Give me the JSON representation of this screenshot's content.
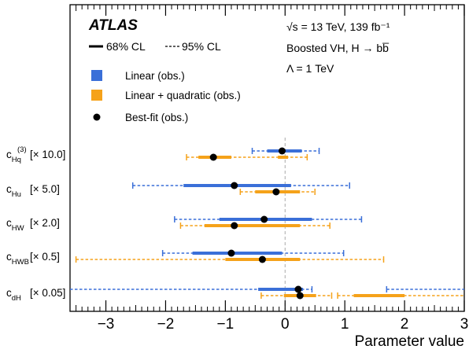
{
  "chart_data": {
    "type": "interval",
    "title": "",
    "xlabel": "Parameter value",
    "xlim": [
      -3.6,
      3.0
    ],
    "x_ticks": [
      -3,
      -2,
      -1,
      0,
      1,
      2,
      3
    ],
    "x_tick_labels": [
      "−3",
      "−2",
      "−1",
      "0",
      "1",
      "2",
      "3"
    ],
    "reference_line_x": 0,
    "experiment_label": "ATLAS",
    "info_lines": [
      "√s = 13 TeV, 139 fb⁻¹",
      "Boosted VH, H → bb̅",
      "Λ = 1 TeV"
    ],
    "cl_legend": {
      "cl68": "68% CL",
      "cl95": "95% CL"
    },
    "legend": [
      {
        "label": "Linear (obs.)",
        "color": "#3a6fd8",
        "marker": "square"
      },
      {
        "label": "Linear + quadratic (obs.)",
        "color": "#f5a21a",
        "marker": "square"
      },
      {
        "label": "Best-fit (obs.)",
        "color": "#000000",
        "marker": "dot"
      }
    ],
    "parameters": [
      {
        "label": "c_Hq^(3) [× 10.0]",
        "name": "c",
        "sub": "Hq",
        "sup": "(3)",
        "scale": "[× 10.0]",
        "linear": {
          "best": -0.05,
          "cl68": [
            [
              -0.3,
              0.28
            ]
          ],
          "cl95": [
            [
              -0.55,
              0.57
            ]
          ]
        },
        "quadratic": {
          "best": -1.2,
          "cl68": [
            [
              -1.45,
              -0.9
            ],
            [
              -0.12,
              0.05
            ]
          ],
          "cl95": [
            [
              -1.65,
              0.37
            ]
          ]
        }
      },
      {
        "label": "c_Hu [× 5.0]",
        "name": "c",
        "sub": "Hu",
        "sup": "",
        "scale": "[× 5.0]",
        "linear": {
          "best": -0.85,
          "cl68": [
            [
              -1.7,
              0.1
            ]
          ],
          "cl95": [
            [
              -2.55,
              1.08
            ]
          ]
        },
        "quadratic": {
          "best": -0.15,
          "cl68": [
            [
              -0.5,
              0.25
            ]
          ],
          "cl95": [
            [
              -0.75,
              0.5
            ]
          ]
        }
      },
      {
        "label": "c_HW [× 2.0]",
        "name": "c",
        "sub": "HW",
        "sup": "",
        "scale": "[× 2.0]",
        "linear": {
          "best": -0.35,
          "cl68": [
            [
              -1.1,
              0.45
            ]
          ],
          "cl95": [
            [
              -1.85,
              1.28
            ]
          ]
        },
        "quadratic": {
          "best": -0.85,
          "cl68": [
            [
              -1.35,
              0.25
            ]
          ],
          "cl95": [
            [
              -1.75,
              0.75
            ]
          ]
        }
      },
      {
        "label": "c_HWB [× 0.5]",
        "name": "c",
        "sub": "HWB",
        "sup": "",
        "scale": "[× 0.5]",
        "linear": {
          "best": -0.9,
          "cl68": [
            [
              -1.55,
              -0.05
            ]
          ],
          "cl95": [
            [
              -2.05,
              0.98
            ]
          ]
        },
        "quadratic": {
          "best": -0.38,
          "cl68": [
            [
              -1.0,
              0.25
            ]
          ],
          "cl95": [
            [
              -3.5,
              1.65
            ]
          ]
        }
      },
      {
        "label": "c_dH [× 0.05]",
        "name": "c",
        "sub": "dH",
        "sup": "",
        "scale": "[× 0.05]",
        "linear": {
          "best": 0.22,
          "cl68": [
            [
              -0.45,
              0.3
            ]
          ],
          "cl95": [
            [
              -3.6,
              0.45
            ],
            [
              1.7,
              3.0
            ]
          ]
        },
        "quadratic": {
          "best": 0.25,
          "cl68": [
            [
              -0.02,
              0.52
            ],
            [
              1.15,
              2.0
            ]
          ],
          "cl95": [
            [
              -0.4,
              0.78
            ],
            [
              0.88,
              3.0
            ]
          ]
        }
      }
    ]
  }
}
